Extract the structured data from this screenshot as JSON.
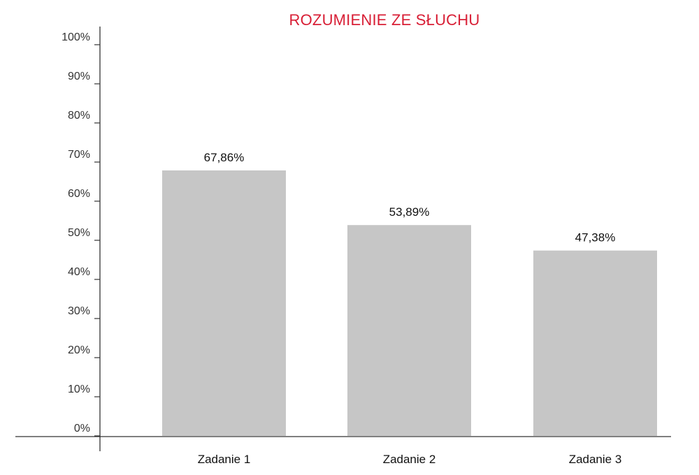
{
  "chart_data": {
    "type": "bar",
    "title": "ROZUMIENIE ZE SŁUCHU",
    "categories": [
      "Zadanie 1",
      "Zadanie 2",
      "Zadanie 3"
    ],
    "values": [
      67.86,
      53.89,
      47.38
    ],
    "data_labels": [
      "67,86%",
      "53,89%",
      "47,38%"
    ],
    "ylim": [
      0,
      100
    ],
    "y_ticks": [
      0,
      10,
      20,
      30,
      40,
      50,
      60,
      70,
      80,
      90,
      100
    ],
    "y_tick_labels": [
      "0%",
      "10%",
      "20%",
      "30%",
      "40%",
      "50%",
      "60%",
      "70%",
      "80%",
      "90%",
      "100%"
    ],
    "xlabel": "",
    "ylabel": "",
    "grid": false,
    "legend": "none"
  },
  "colors": {
    "bar": "#c6c6c6",
    "title": "#d81e35",
    "axis": "#333333"
  }
}
